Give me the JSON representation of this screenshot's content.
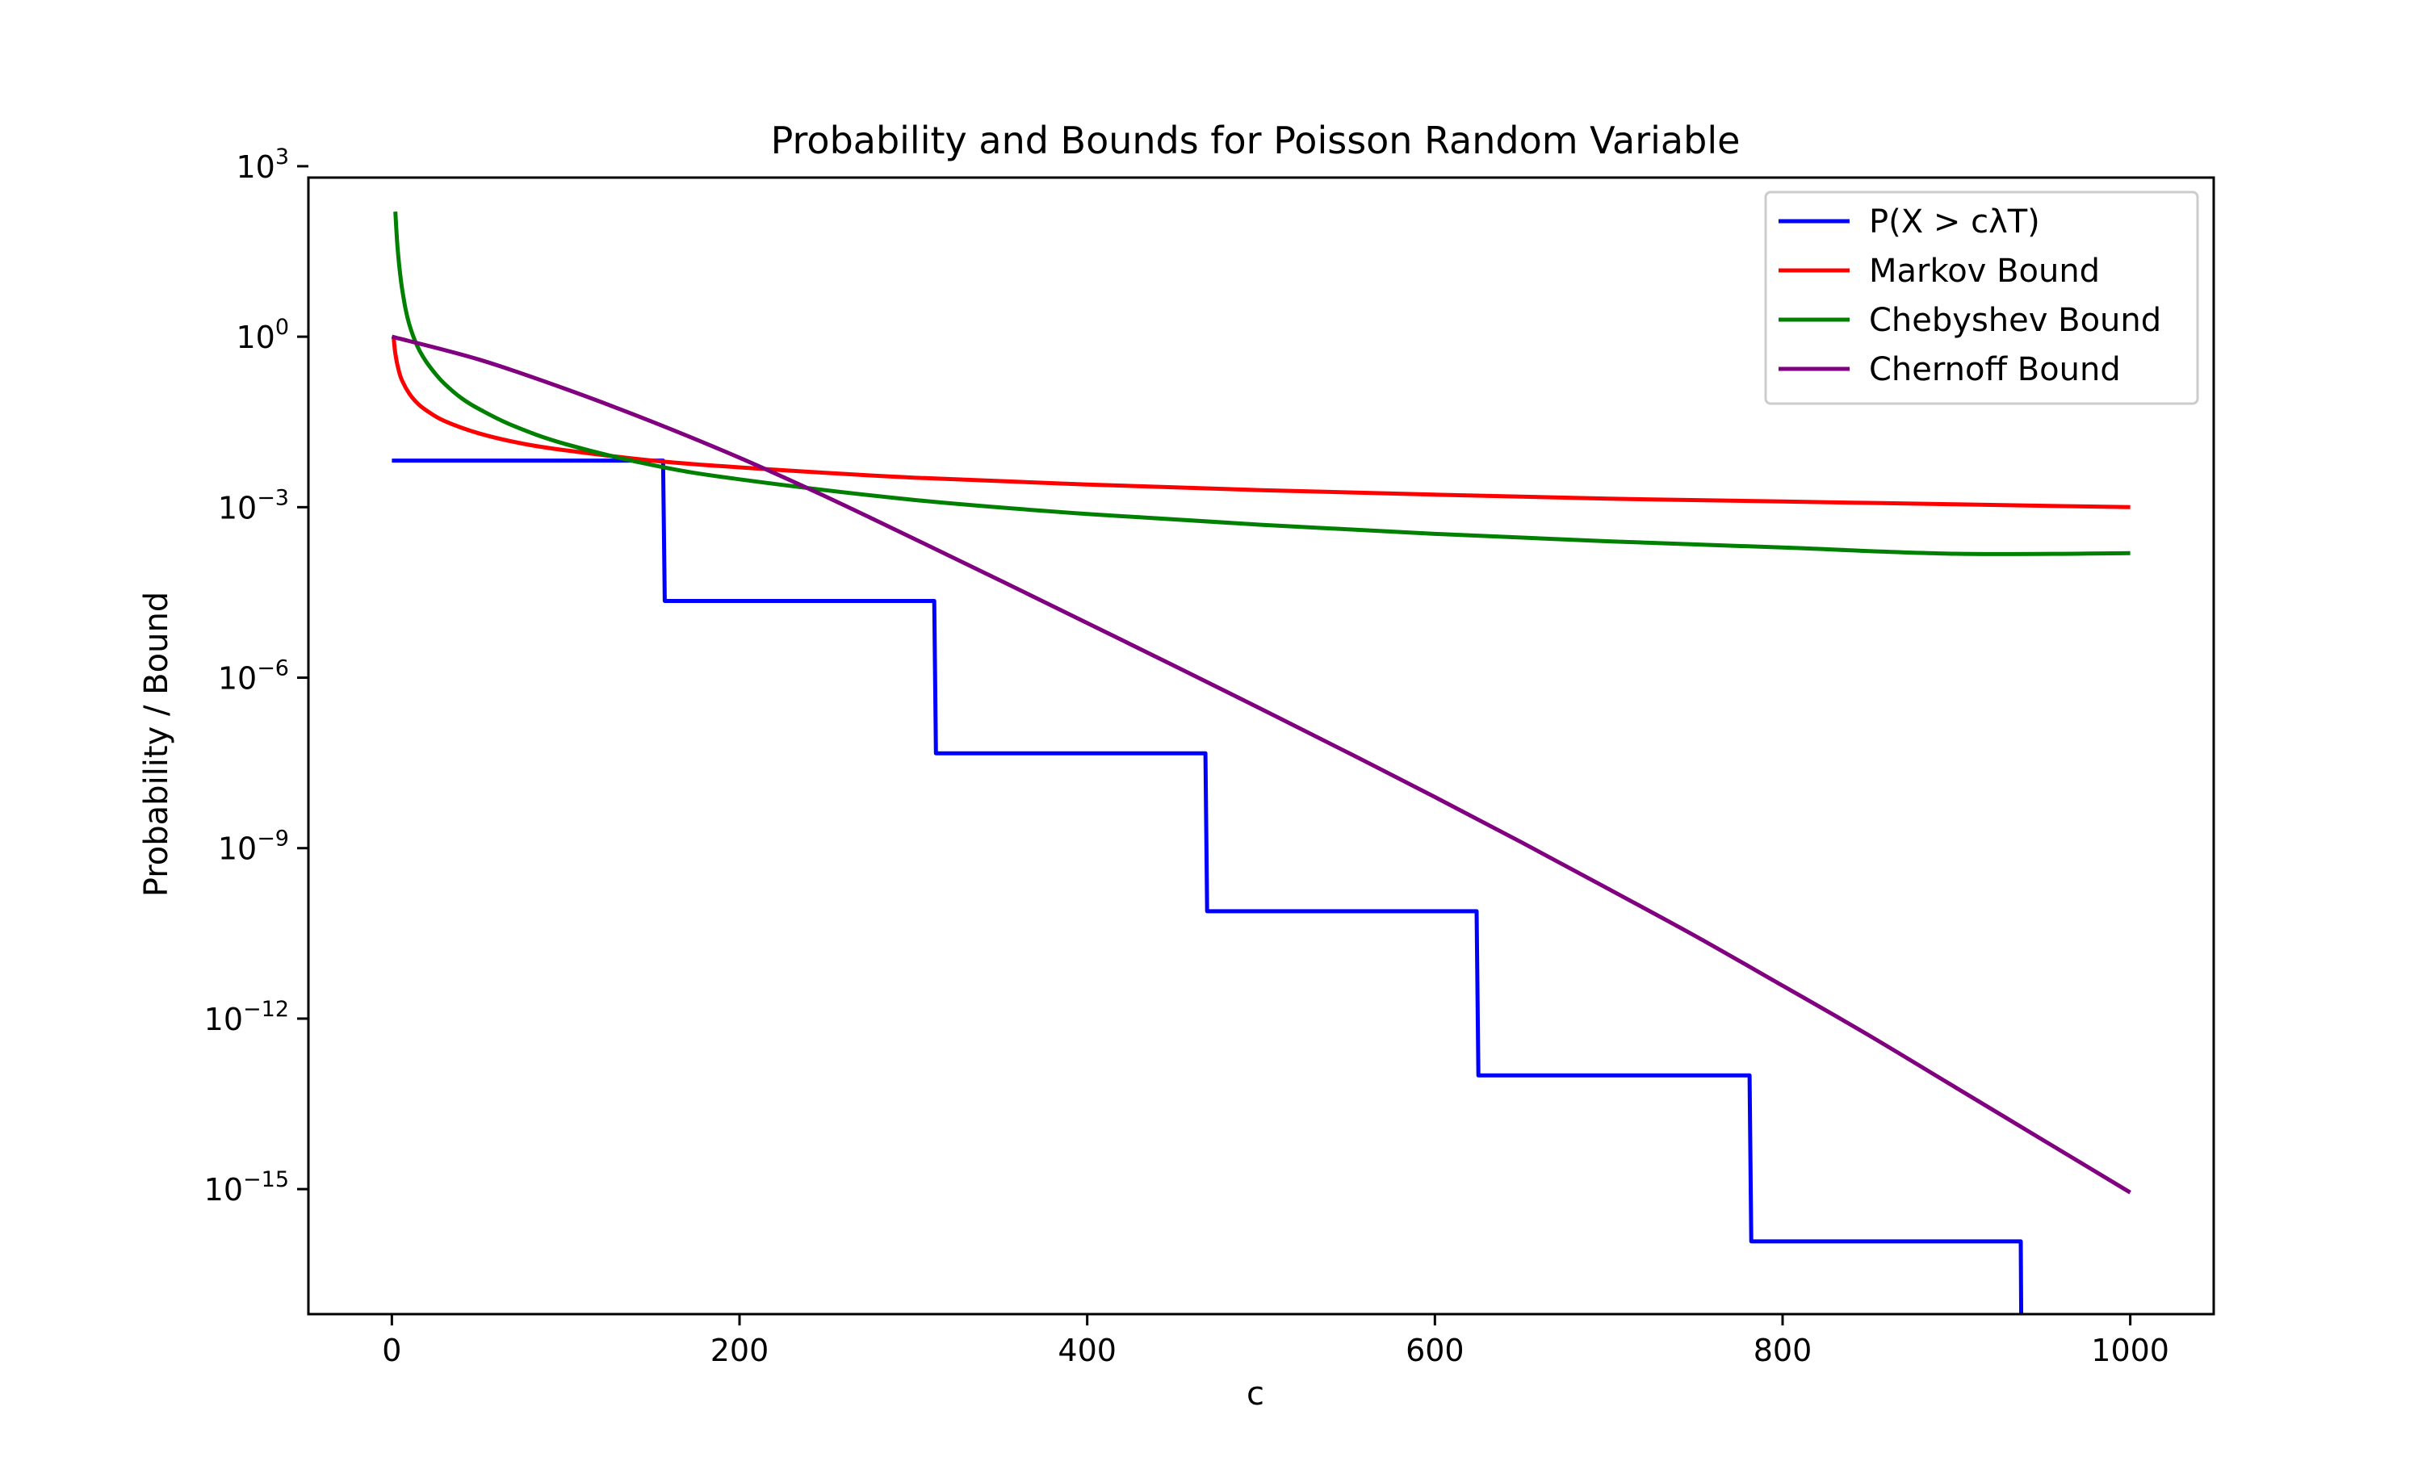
{
  "chart_data": {
    "type": "line",
    "title": "Probability and Bounds for Poisson Random Variable",
    "xlabel": "c",
    "ylabel": "Probability / Bound",
    "xlim": [
      -48,
      1048
    ],
    "ylim": [
      -17.2,
      2.8
    ],
    "yscale": "log",
    "xticks": [
      0,
      200,
      400,
      600,
      800,
      1000
    ],
    "xtick_labels": [
      "0",
      "200",
      "400",
      "600",
      "800",
      "1000"
    ],
    "yticks": [
      3,
      0,
      -3,
      -6,
      -9,
      -12,
      -15
    ],
    "ytick_labels": [
      {
        "base": "10",
        "exp": "3"
      },
      {
        "base": "10",
        "exp": "0"
      },
      {
        "base": "10",
        "exp": "−3"
      },
      {
        "base": "10",
        "exp": "−6"
      },
      {
        "base": "10",
        "exp": "−9"
      },
      {
        "base": "10",
        "exp": "−12"
      },
      {
        "base": "10",
        "exp": "−15"
      }
    ],
    "legend_position": "top-right",
    "series": [
      {
        "name": "P(X > cλT)",
        "color": "#0000ff",
        "style": "step",
        "x_log10y": [
          [
            0,
            -2.18
          ],
          [
            156,
            -2.18
          ],
          [
            157,
            -4.65
          ],
          [
            312,
            -4.65
          ],
          [
            313,
            -7.33
          ],
          [
            468,
            -7.33
          ],
          [
            469,
            -10.11
          ],
          [
            624,
            -10.11
          ],
          [
            625,
            -13.0
          ],
          [
            781,
            -13.0
          ],
          [
            782,
            -15.92
          ],
          [
            937,
            -15.92
          ],
          [
            937.5,
            -18.5
          ]
        ]
      },
      {
        "name": "Markov Bound",
        "color": "#ff0000",
        "style": "curve",
        "x_log10y": [
          [
            1,
            0.0
          ],
          [
            2,
            -0.3
          ],
          [
            4,
            -0.6
          ],
          [
            6,
            -0.78
          ],
          [
            10,
            -1.0
          ],
          [
            15,
            -1.18
          ],
          [
            20,
            -1.3
          ],
          [
            30,
            -1.48
          ],
          [
            50,
            -1.7
          ],
          [
            75,
            -1.88
          ],
          [
            100,
            -2.0
          ],
          [
            150,
            -2.18
          ],
          [
            200,
            -2.3
          ],
          [
            300,
            -2.48
          ],
          [
            400,
            -2.6
          ],
          [
            500,
            -2.7
          ],
          [
            600,
            -2.78
          ],
          [
            700,
            -2.85
          ],
          [
            800,
            -2.9
          ],
          [
            900,
            -2.95
          ],
          [
            1000,
            -3.0
          ]
        ]
      },
      {
        "name": "Chebyshev Bound",
        "color": "#008000",
        "style": "curve",
        "x_log10y": [
          [
            2,
            2.2
          ],
          [
            3,
            1.69
          ],
          [
            4,
            1.32
          ],
          [
            5,
            1.05
          ],
          [
            6,
            0.82
          ],
          [
            8,
            0.47
          ],
          [
            10,
            0.22
          ],
          [
            13,
            -0.05
          ],
          [
            16,
            -0.25
          ],
          [
            20,
            -0.45
          ],
          [
            25,
            -0.65
          ],
          [
            30,
            -0.82
          ],
          [
            40,
            -1.08
          ],
          [
            50,
            -1.27
          ],
          [
            70,
            -1.57
          ],
          [
            100,
            -1.89
          ],
          [
            150,
            -2.26
          ],
          [
            200,
            -2.51
          ],
          [
            300,
            -2.87
          ],
          [
            400,
            -3.12
          ],
          [
            500,
            -3.31
          ],
          [
            600,
            -3.47
          ],
          [
            700,
            -3.6
          ],
          [
            800,
            -3.71
          ],
          [
            900,
            -3.82
          ],
          [
            1000,
            -3.81
          ]
        ]
      },
      {
        "name": "Chernoff Bound",
        "color": "#800080",
        "style": "curve",
        "x_log10y": [
          [
            0,
            0.0
          ],
          [
            50,
            -0.4
          ],
          [
            100,
            -0.92
          ],
          [
            150,
            -1.5
          ],
          [
            200,
            -2.13
          ],
          [
            250,
            -2.82
          ],
          [
            300,
            -3.55
          ],
          [
            350,
            -4.29
          ],
          [
            400,
            -5.04
          ],
          [
            450,
            -5.79
          ],
          [
            500,
            -6.55
          ],
          [
            550,
            -7.32
          ],
          [
            600,
            -8.1
          ],
          [
            650,
            -8.9
          ],
          [
            700,
            -9.72
          ],
          [
            750,
            -10.55
          ],
          [
            800,
            -11.42
          ],
          [
            850,
            -12.3
          ],
          [
            900,
            -13.22
          ],
          [
            950,
            -14.14
          ],
          [
            1000,
            -15.06
          ]
        ]
      }
    ]
  }
}
